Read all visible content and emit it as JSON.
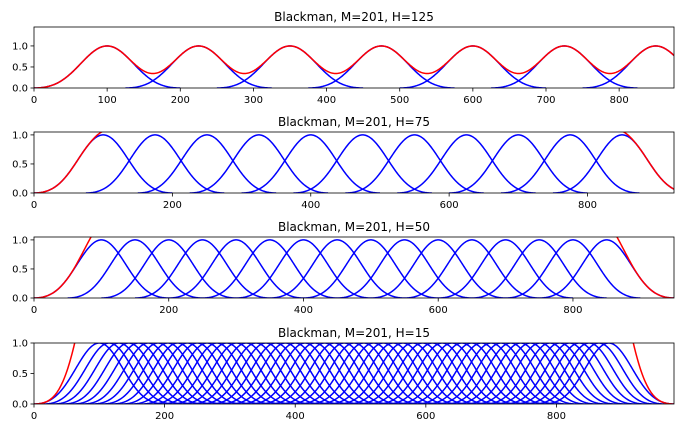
{
  "chart_data": [
    {
      "type": "line",
      "title": "Blackman, M=201, H=125",
      "window": "Blackman",
      "M": 201,
      "H": 125,
      "xlim": [
        0,
        875
      ],
      "ylim": [
        0,
        1.45
      ],
      "xticks": [
        0,
        100,
        200,
        300,
        400,
        500,
        600,
        700,
        800
      ],
      "yticks": [
        0.0,
        0.5,
        1.0
      ],
      "ytick_labels": [
        "0.0",
        "0.5",
        "1.0"
      ],
      "window_starts": [
        0,
        125,
        250,
        375,
        500,
        625,
        750
      ],
      "window_color": "#0000ff",
      "sum_color": "#ff0000"
    },
    {
      "type": "line",
      "title": "Blackman, M=201, H=75",
      "window": "Blackman",
      "M": 201,
      "H": 75,
      "xlim": [
        0,
        925
      ],
      "ylim": [
        0,
        1.05
      ],
      "xticks": [
        0,
        200,
        400,
        600,
        800
      ],
      "yticks": [
        0.0,
        0.5,
        1.0
      ],
      "ytick_labels": [
        "0.0",
        "0.5",
        "1.0"
      ],
      "window_starts": [
        0,
        75,
        150,
        225,
        300,
        375,
        450,
        525,
        600,
        675,
        750
      ],
      "window_color": "#0000ff",
      "sum_color": "#ff0000"
    },
    {
      "type": "line",
      "title": "Blackman, M=201, H=50",
      "window": "Blackman",
      "M": 201,
      "H": 50,
      "xlim": [
        0,
        950
      ],
      "ylim": [
        0,
        1.05
      ],
      "xticks": [
        0,
        200,
        400,
        600,
        800
      ],
      "yticks": [
        0.0,
        0.5,
        1.0
      ],
      "ytick_labels": [
        "0.0",
        "0.5",
        "1.0"
      ],
      "window_starts": [
        0,
        50,
        100,
        150,
        200,
        250,
        300,
        350,
        400,
        450,
        500,
        550,
        600,
        650,
        700,
        750
      ],
      "window_color": "#0000ff",
      "sum_color": "#ff0000"
    },
    {
      "type": "line",
      "title": "Blackman, M=201, H=15",
      "window": "Blackman",
      "M": 201,
      "H": 15,
      "xlim": [
        0,
        980
      ],
      "ylim": [
        0,
        1.0
      ],
      "xticks": [
        0,
        200,
        400,
        600,
        800
      ],
      "yticks": [
        0.0,
        0.5,
        1.0
      ],
      "ytick_labels": [
        "0.0",
        "0.5",
        "1.0"
      ],
      "window_starts": [
        0,
        15,
        30,
        45,
        60,
        75,
        90,
        105,
        120,
        135,
        150,
        165,
        180,
        195,
        210,
        225,
        240,
        255,
        270,
        285,
        300,
        315,
        330,
        345,
        360,
        375,
        390,
        405,
        420,
        435,
        450,
        465,
        480,
        495,
        510,
        525,
        540,
        555,
        570,
        585,
        600,
        615,
        630,
        645,
        660,
        675,
        690,
        705,
        720,
        735,
        750,
        765,
        780
      ],
      "window_color": "#0000ff",
      "sum_color": "#ff0000"
    }
  ]
}
